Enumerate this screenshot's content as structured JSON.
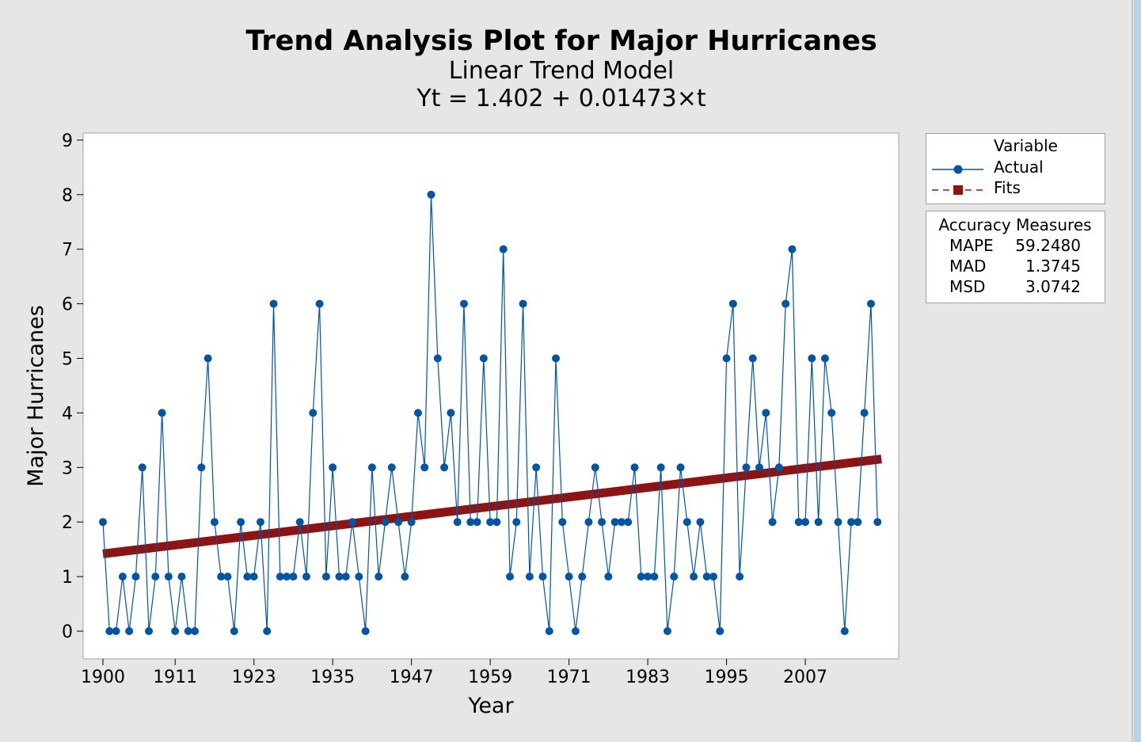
{
  "chart_data": {
    "type": "line",
    "title": "Trend Analysis Plot for Major Hurricanes",
    "subtitle": "Linear Trend Model",
    "equation": "Yt = 1.402 + 0.01473×t",
    "xlabel": "Year",
    "ylabel": "Major Hurricanes",
    "xlim": [
      1897,
      2022
    ],
    "ylim": [
      -0.5,
      9.2
    ],
    "x_ticks": [
      "1900",
      "1911",
      "1923",
      "1935",
      "1947",
      "1959",
      "1971",
      "1983",
      "1995",
      "2007"
    ],
    "y_ticks": [
      "0",
      "1",
      "2",
      "3",
      "4",
      "5",
      "6",
      "7",
      "8",
      "9"
    ],
    "x_start": 1900,
    "series": [
      {
        "name": "Actual",
        "color": "#0054a6",
        "marker": "circle",
        "style": "solid",
        "values": [
          2,
          0,
          0,
          1,
          0,
          1,
          3,
          0,
          1,
          4,
          1,
          0,
          1,
          0,
          0,
          3,
          5,
          2,
          1,
          1,
          0,
          2,
          1,
          1,
          2,
          0,
          6,
          1,
          1,
          1,
          2,
          1,
          4,
          6,
          1,
          3,
          1,
          1,
          2,
          1,
          0,
          3,
          1,
          2,
          3,
          2,
          1,
          2,
          4,
          3,
          8,
          5,
          3,
          4,
          2,
          6,
          2,
          2,
          5,
          2,
          2,
          7,
          1,
          2,
          6,
          1,
          3,
          1,
          0,
          5,
          2,
          1,
          0,
          1,
          2,
          3,
          2,
          1,
          2,
          2,
          2,
          3,
          1,
          1,
          1,
          3,
          0,
          1,
          3,
          2,
          1,
          2,
          1,
          1,
          0,
          5,
          6,
          1,
          3,
          5,
          3,
          4,
          2,
          3,
          6,
          7,
          2,
          2,
          5,
          2,
          5,
          4,
          2,
          0,
          2,
          2,
          4,
          6,
          2
        ]
      },
      {
        "name": "Fits",
        "color": "#8e1414",
        "marker": "square",
        "style": "dashed",
        "intercept": 1.402,
        "slope": 0.01473
      }
    ],
    "legend": {
      "title": "Variable",
      "position": "right"
    },
    "accuracy": {
      "title": "Accuracy Measures",
      "rows": [
        {
          "label": "MAPE",
          "value": "59.2480"
        },
        {
          "label": "MAD",
          "value": "1.3745"
        },
        {
          "label": "MSD",
          "value": "3.0742"
        }
      ]
    },
    "grid": false
  }
}
